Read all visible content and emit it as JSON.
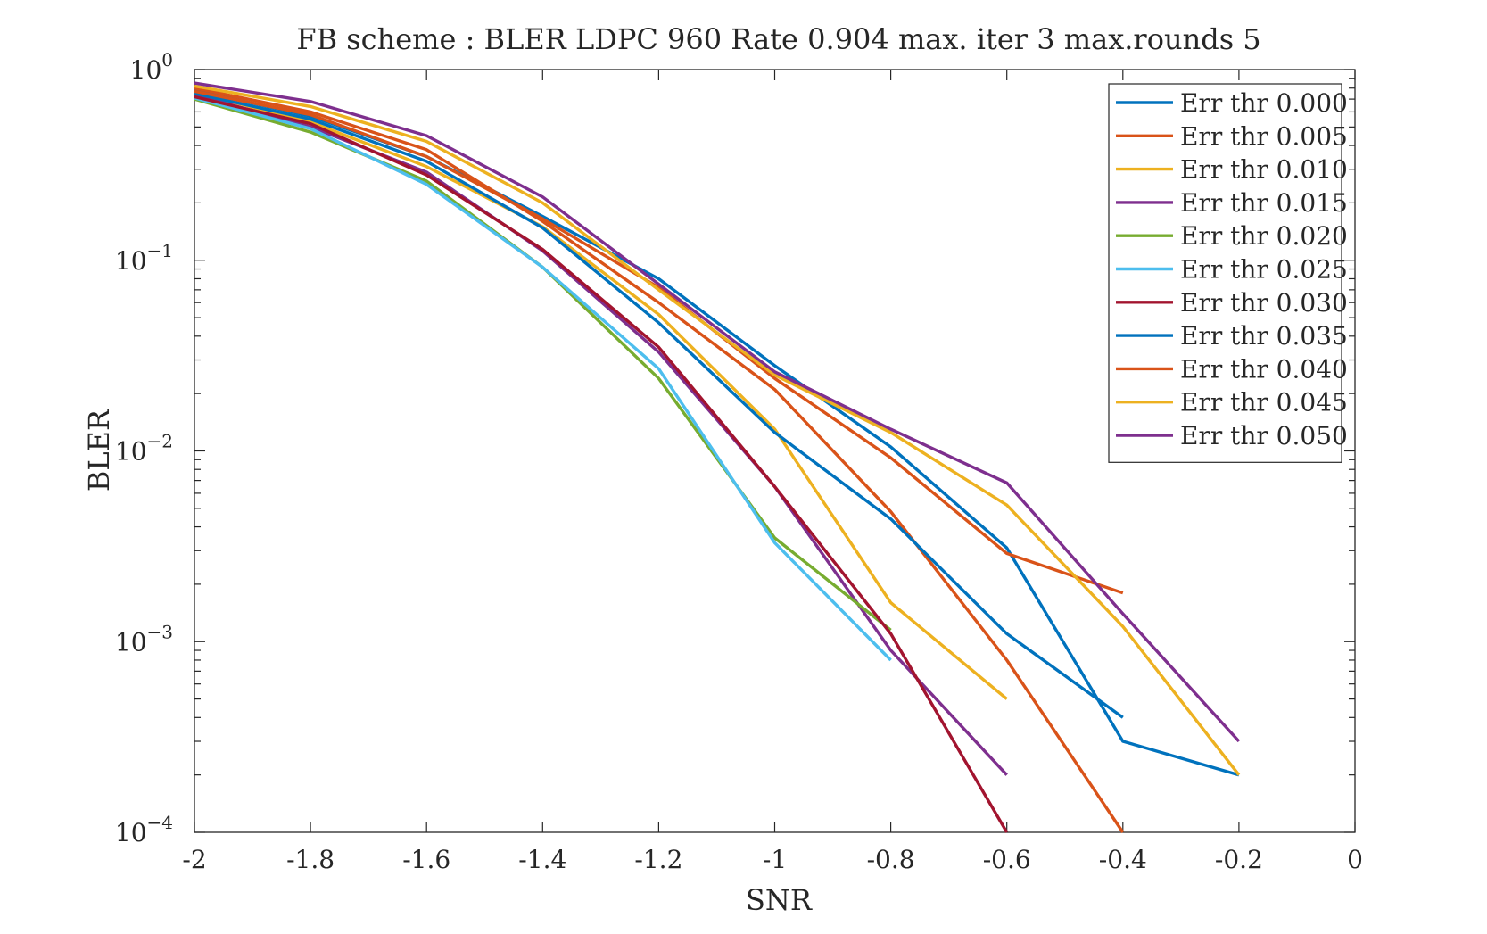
{
  "chart_data": {
    "type": "line",
    "title": "FB scheme : BLER LDPC 960 Rate 0.904 max. iter 3 max.rounds 5",
    "xlabel": "SNR",
    "ylabel": "BLER",
    "xlim": [
      -2,
      0
    ],
    "ylim": [
      0.0001,
      1
    ],
    "yscale": "log",
    "x_ticks": [
      -2,
      -1.8,
      -1.6,
      -1.4,
      -1.2,
      -1,
      -0.8,
      -0.6,
      -0.4,
      -0.2,
      0
    ],
    "x_tick_labels": [
      "-2",
      "-1.8",
      "-1.6",
      "-1.4",
      "-1.2",
      "-1",
      "-0.8",
      "-0.6",
      "-0.4",
      "-0.2",
      "0"
    ],
    "y_tick_labels": [
      {
        "value": 1,
        "base": "10",
        "exp": "0"
      },
      {
        "value": 0.1,
        "base": "10",
        "exp": "−1"
      },
      {
        "value": 0.01,
        "base": "10",
        "exp": "−2"
      },
      {
        "value": 0.001,
        "base": "10",
        "exp": "−3"
      },
      {
        "value": 0.0001,
        "base": "10",
        "exp": "−4"
      }
    ],
    "grid": false,
    "legend_position": "top-right",
    "series": [
      {
        "name": "Err thr 0.000",
        "color": "#0072BD",
        "x": [
          -2,
          -1.8,
          -1.6,
          -1.4,
          -1.2,
          -1,
          -0.8,
          -0.6,
          -0.4,
          -0.2
        ],
        "y": [
          0.78,
          0.57,
          0.35,
          0.17,
          0.08,
          0.028,
          0.0105,
          0.0031,
          0.0003,
          0.0002
        ]
      },
      {
        "name": "Err thr 0.005",
        "color": "#D95319",
        "x": [
          -2,
          -1.8,
          -1.6,
          -1.4,
          -1.2,
          -1,
          -0.8,
          -0.6,
          -0.4
        ],
        "y": [
          0.8,
          0.6,
          0.38,
          0.16,
          0.06,
          0.021,
          0.0048,
          0.0008,
          0.0001
        ]
      },
      {
        "name": "Err thr 0.010",
        "color": "#EDB120",
        "x": [
          -2,
          -1.8,
          -1.6,
          -1.4,
          -1.2,
          -1,
          -0.8,
          -0.6
        ],
        "y": [
          0.76,
          0.53,
          0.31,
          0.15,
          0.052,
          0.013,
          0.0016,
          0.0005
        ]
      },
      {
        "name": "Err thr 0.015",
        "color": "#7E2F8E",
        "x": [
          -2,
          -1.8,
          -1.6,
          -1.4,
          -1.2,
          -1,
          -0.8,
          -0.6
        ],
        "y": [
          0.74,
          0.5,
          0.29,
          0.112,
          0.033,
          0.0065,
          0.0009,
          0.0002
        ]
      },
      {
        "name": "Err thr 0.020",
        "color": "#77AC30",
        "x": [
          -2,
          -1.8,
          -1.6,
          -1.4,
          -1.2,
          -1,
          -0.8
        ],
        "y": [
          0.7,
          0.47,
          0.26,
          0.092,
          0.024,
          0.0035,
          0.00115
        ]
      },
      {
        "name": "Err thr 0.025",
        "color": "#4DBEEE",
        "x": [
          -2,
          -1.8,
          -1.6,
          -1.4,
          -1.2,
          -1,
          -0.8
        ],
        "y": [
          0.71,
          0.49,
          0.25,
          0.092,
          0.027,
          0.0033,
          0.0008
        ]
      },
      {
        "name": "Err thr 0.030",
        "color": "#A2142F",
        "x": [
          -2,
          -1.8,
          -1.6,
          -1.4,
          -1.2,
          -1,
          -0.8,
          -0.6
        ],
        "y": [
          0.72,
          0.52,
          0.28,
          0.114,
          0.035,
          0.0065,
          0.0011,
          0.0001
        ]
      },
      {
        "name": "Err thr 0.035",
        "color": "#0072BD",
        "x": [
          -2,
          -1.8,
          -1.6,
          -1.4,
          -1.2,
          -1,
          -0.8,
          -0.6,
          -0.4
        ],
        "y": [
          0.75,
          0.55,
          0.33,
          0.148,
          0.047,
          0.0125,
          0.0044,
          0.0011,
          0.0004
        ]
      },
      {
        "name": "Err thr 0.040",
        "color": "#D95319",
        "x": [
          -2,
          -1.8,
          -1.6,
          -1.4,
          -1.2,
          -1,
          -0.8,
          -0.6,
          -0.4
        ],
        "y": [
          0.77,
          0.58,
          0.35,
          0.165,
          0.072,
          0.024,
          0.0092,
          0.0029,
          0.0018
        ]
      },
      {
        "name": "Err thr 0.045",
        "color": "#EDB120",
        "x": [
          -2,
          -1.8,
          -1.6,
          -1.4,
          -1.2,
          -1,
          -0.8,
          -0.6,
          -0.4,
          -0.2
        ],
        "y": [
          0.82,
          0.64,
          0.42,
          0.2,
          0.07,
          0.025,
          0.0125,
          0.0052,
          0.0012,
          0.0002
        ]
      },
      {
        "name": "Err thr 0.050",
        "color": "#7E2F8E",
        "x": [
          -2,
          -1.8,
          -1.6,
          -1.4,
          -1.2,
          -1,
          -0.8,
          -0.6,
          -0.4,
          -0.2
        ],
        "y": [
          0.85,
          0.68,
          0.45,
          0.215,
          0.075,
          0.026,
          0.013,
          0.0068,
          0.0014,
          0.0003
        ]
      }
    ]
  }
}
